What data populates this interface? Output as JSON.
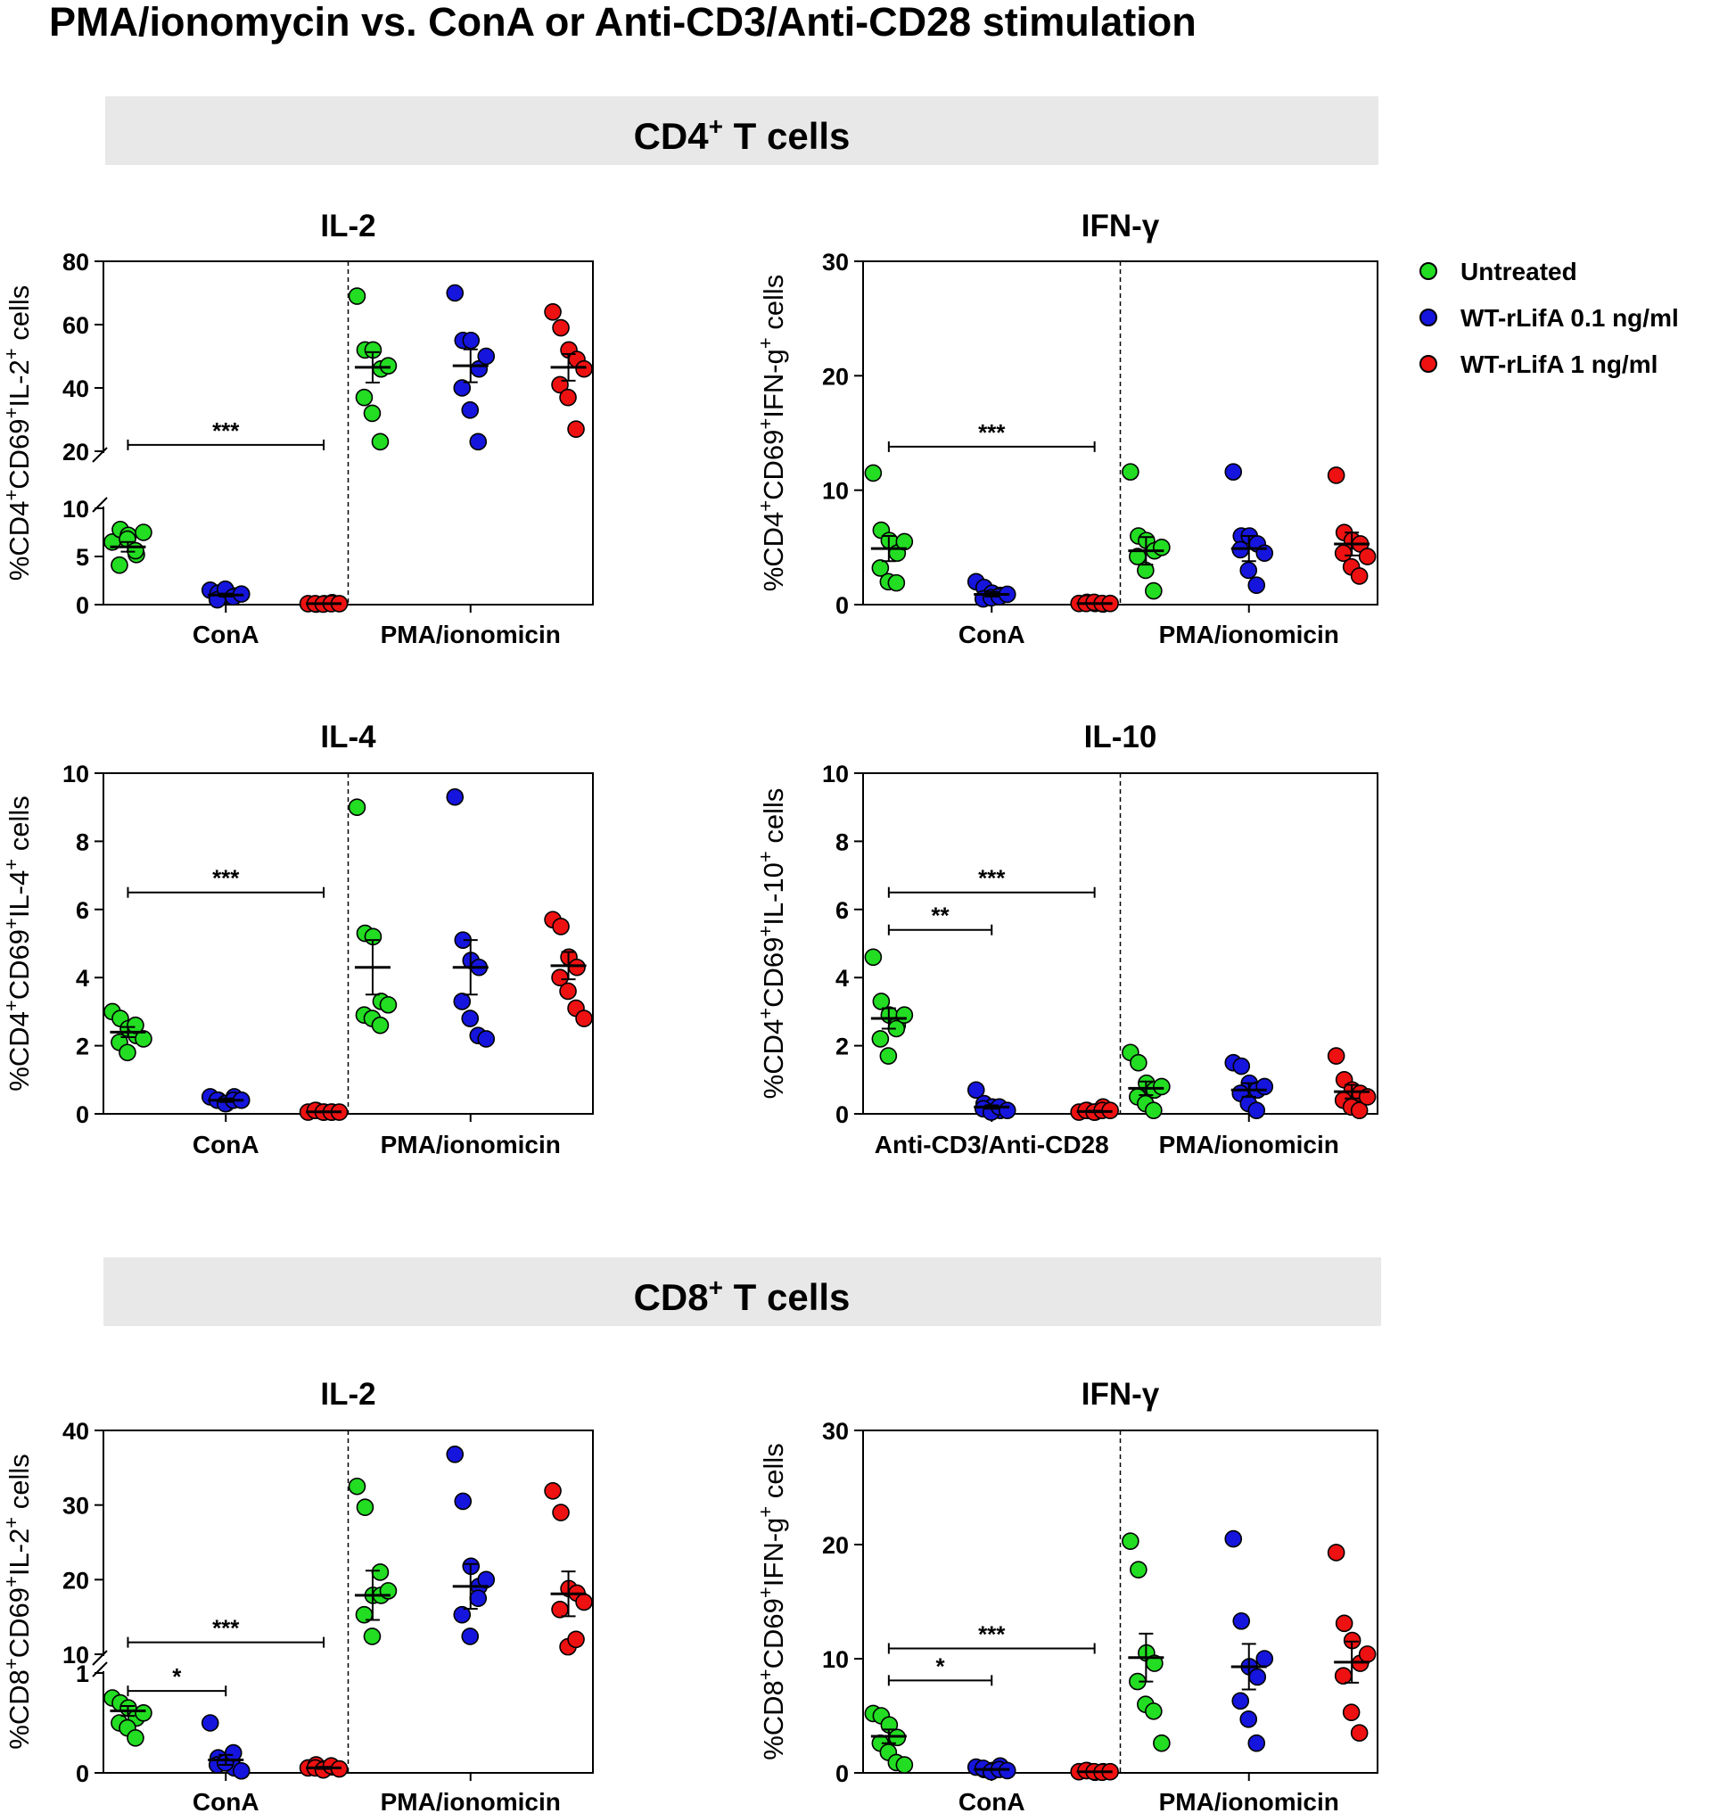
{
  "title": "PMA/ionomycin vs. ConA or Anti-CD3/Anti-CD28 stimulation",
  "sections": [
    {
      "label": "CD4",
      "sup": "+",
      "rest": " T cells"
    },
    {
      "label": "CD8",
      "sup": "+",
      "rest": " T cells"
    }
  ],
  "legend": [
    {
      "label": "Untreated",
      "color": "#22dd22"
    },
    {
      "label": "WT-rLifA 0.1 ng/ml",
      "color": "#1515dd"
    },
    {
      "label": "WT-rLifA 1 ng/ml",
      "color": "#ee1111"
    }
  ],
  "chart_data": [
    {
      "type": "scatter",
      "title": "IL-2",
      "ylabel": [
        [
          "%CD4",
          ""
        ],
        [
          "+",
          "sup"
        ],
        [
          "CD69",
          ""
        ],
        [
          "+",
          "sup"
        ],
        [
          "IL-2",
          ""
        ],
        [
          "+",
          "sup"
        ],
        [
          " cells",
          ""
        ]
      ],
      "categories": [
        "ConA",
        "PMA/ionomicin"
      ],
      "ylim": [
        0,
        80
      ],
      "axis_break": {
        "lower": [
          0,
          10
        ],
        "upper": [
          20,
          80
        ]
      },
      "yticks": [
        "0",
        "5",
        "10",
        "20",
        "40",
        "60",
        "80"
      ],
      "series": [
        {
          "name": "Untreated",
          "values": [
            [
              6.5,
              7.8,
              7.2,
              5.2,
              4.1,
              6.8,
              5.6,
              7.5
            ],
            [
              69,
              52,
              52,
              46,
              37,
              32,
              23,
              47
            ]
          ],
          "mean": [
            6.0,
            46.5
          ],
          "sem": [
            0.5,
            4.8
          ]
        },
        {
          "name": "WT-rLifA 0.1 ng/ml",
          "values": [
            [
              1.5,
              1.2,
              1.0,
              0.9,
              0.5,
              1.6,
              0.8,
              1.1
            ],
            [
              70,
              55,
              55,
              46,
              40,
              33,
              23,
              50
            ]
          ],
          "mean": [
            1.0,
            47.0
          ],
          "sem": [
            0.15,
            5.2
          ]
        },
        {
          "name": "WT-rLifA 1 ng/ml",
          "values": [
            [
              0.1,
              0.05,
              0.1,
              0.2,
              0.1,
              0.05,
              0.1,
              0.1
            ],
            [
              64,
              59,
              52,
              49,
              41,
              37,
              27,
              46
            ]
          ],
          "mean": [
            0.1,
            46.5
          ],
          "sem": [
            0.02,
            4.2
          ]
        }
      ],
      "significance": [
        {
          "from": 0,
          "to": 2,
          "label": "***",
          "y": 22
        }
      ]
    },
    {
      "type": "scatter",
      "title": "IFN-γ",
      "ylabel": [
        [
          "%CD4",
          ""
        ],
        [
          "+",
          "sup"
        ],
        [
          "CD69",
          ""
        ],
        [
          "+",
          "sup"
        ],
        [
          "IFN-g",
          ""
        ],
        [
          "+",
          "sup"
        ],
        [
          " cells",
          ""
        ]
      ],
      "categories": [
        "ConA",
        "PMA/ionomicin"
      ],
      "ylim": [
        0,
        30
      ],
      "yticks": [
        "0",
        "10",
        "20",
        "30"
      ],
      "series": [
        {
          "name": "Untreated",
          "values": [
            [
              11.5,
              6.5,
              5.6,
              4.5,
              3.2,
              2.0,
              1.9,
              5.5
            ],
            [
              11.6,
              6.0,
              5.6,
              4.7,
              4.2,
              3.0,
              1.2,
              5.0
            ]
          ],
          "mean": [
            4.9,
            4.7
          ],
          "sem": [
            1.1,
            1.2
          ]
        },
        {
          "name": "WT-rLifA 0.1 ng/ml",
          "values": [
            [
              2.0,
              1.5,
              1.0,
              0.8,
              0.5,
              0.6,
              0.7,
              0.9
            ],
            [
              11.6,
              6.0,
              6.0,
              5.3,
              4.8,
              3.0,
              1.7,
              4.5
            ]
          ],
          "mean": [
            0.9,
            4.9
          ],
          "sem": [
            0.2,
            1.1
          ]
        },
        {
          "name": "WT-rLifA 1 ng/ml",
          "values": [
            [
              0.1,
              0.2,
              0.1,
              0.05,
              0.1,
              0.2,
              0.1,
              0.1
            ],
            [
              11.3,
              6.3,
              5.6,
              5.3,
              4.5,
              3.3,
              2.5,
              4.2
            ]
          ],
          "mean": [
            0.1,
            5.3
          ],
          "sem": [
            0.02,
            1.0
          ]
        }
      ],
      "significance": [
        {
          "from": 0,
          "to": 2,
          "label": "***",
          "y": 13.8
        }
      ]
    },
    {
      "type": "scatter",
      "title": "IL-4",
      "ylabel": [
        [
          "%CD4",
          ""
        ],
        [
          "+",
          "sup"
        ],
        [
          "CD69",
          ""
        ],
        [
          "+",
          "sup"
        ],
        [
          "IL-4",
          ""
        ],
        [
          "+",
          "sup"
        ],
        [
          " cells",
          ""
        ]
      ],
      "categories": [
        "ConA",
        "PMA/ionomicin"
      ],
      "ylim": [
        0,
        10
      ],
      "yticks": [
        "0",
        "2",
        "4",
        "6",
        "8",
        "10"
      ],
      "series": [
        {
          "name": "Untreated",
          "values": [
            [
              3.0,
              2.8,
              2.5,
              2.3,
              2.1,
              1.8,
              2.6,
              2.2
            ],
            [
              9.0,
              5.3,
              5.2,
              3.3,
              2.9,
              2.8,
              2.6,
              3.2
            ]
          ],
          "mean": [
            2.4,
            4.3
          ],
          "sem": [
            0.15,
            0.8
          ]
        },
        {
          "name": "WT-rLifA 0.1 ng/ml",
          "values": [
            [
              0.5,
              0.4,
              0.3,
              0.5,
              0.4,
              0.3,
              0.4,
              0.4
            ],
            [
              9.3,
              5.1,
              4.5,
              4.3,
              3.3,
              2.8,
              2.3,
              2.2
            ]
          ],
          "mean": [
            0.4,
            4.3
          ],
          "sem": [
            0.05,
            0.8
          ]
        },
        {
          "name": "WT-rLifA 1 ng/ml",
          "values": [
            [
              0.05,
              0.1,
              0.05,
              0.05,
              0.1,
              0.05,
              0.05,
              0.05
            ],
            [
              5.7,
              5.5,
              4.6,
              4.3,
              4.0,
              3.6,
              3.1,
              2.8
            ]
          ],
          "mean": [
            0.06,
            4.35
          ],
          "sem": [
            0.01,
            0.4
          ]
        }
      ],
      "significance": [
        {
          "from": 0,
          "to": 2,
          "label": "***",
          "y": 6.5
        }
      ]
    },
    {
      "type": "scatter",
      "title": "IL-10",
      "ylabel": [
        [
          "%CD4",
          ""
        ],
        [
          "+",
          "sup"
        ],
        [
          "CD69",
          ""
        ],
        [
          "+",
          "sup"
        ],
        [
          "IL-10",
          ""
        ],
        [
          "+",
          "sup"
        ],
        [
          " cells",
          ""
        ]
      ],
      "categories": [
        "Anti-CD3/Anti-CD28",
        "PMA/ionomicin"
      ],
      "ylim": [
        0,
        10
      ],
      "yticks": [
        "0",
        "2",
        "4",
        "6",
        "8",
        "10"
      ],
      "series": [
        {
          "name": "Untreated",
          "values": [
            [
              4.6,
              3.3,
              2.9,
              2.6,
              2.2,
              1.7,
              2.5,
              2.9
            ],
            [
              1.8,
              1.5,
              0.9,
              0.7,
              0.5,
              0.3,
              0.1,
              0.8
            ]
          ],
          "mean": [
            2.8,
            0.75
          ],
          "sem": [
            0.3,
            0.2
          ]
        },
        {
          "name": "WT-rLifA 0.1 ng/ml",
          "values": [
            [
              0.7,
              0.3,
              0.2,
              0.1,
              0.15,
              0.05,
              0.2,
              0.1
            ],
            [
              1.5,
              1.4,
              0.9,
              0.7,
              0.6,
              0.3,
              0.1,
              0.8
            ]
          ],
          "mean": [
            0.2,
            0.7
          ],
          "sem": [
            0.05,
            0.2
          ]
        },
        {
          "name": "WT-rLifA 1 ng/ml",
          "values": [
            [
              0.05,
              0.1,
              0.05,
              0.2,
              0.1,
              0.05,
              0.1,
              0.1
            ],
            [
              1.7,
              1.0,
              0.7,
              0.6,
              0.4,
              0.2,
              0.1,
              0.5
            ]
          ],
          "mean": [
            0.07,
            0.65
          ],
          "sem": [
            0.02,
            0.2
          ]
        }
      ],
      "significance": [
        {
          "from": 0,
          "to": 1,
          "label": "**",
          "y": 5.4
        },
        {
          "from": 0,
          "to": 2,
          "label": "***",
          "y": 6.5
        }
      ]
    },
    {
      "type": "scatter",
      "title": "IL-2",
      "ylabel": [
        [
          "%CD8",
          ""
        ],
        [
          "+",
          "sup"
        ],
        [
          "CD69",
          ""
        ],
        [
          "+",
          "sup"
        ],
        [
          "IL-2",
          ""
        ],
        [
          "+",
          "sup"
        ],
        [
          " cells",
          ""
        ]
      ],
      "categories": [
        "ConA",
        "PMA/ionomicin"
      ],
      "ylim": [
        0,
        40
      ],
      "axis_break": {
        "lower": [
          0,
          1
        ],
        "upper": [
          10,
          40
        ]
      },
      "yticks": [
        "0",
        "1",
        "10",
        "20",
        "30",
        "40"
      ],
      "series": [
        {
          "name": "Untreated",
          "values": [
            [
              0.75,
              0.7,
              0.65,
              0.55,
              0.5,
              0.45,
              0.35,
              0.6
            ],
            [
              32.5,
              29.7,
              17.9,
              17.9,
              15.3,
              12.4,
              21.0,
              18.5
            ]
          ],
          "mean": [
            0.62,
            17.9
          ],
          "sem": [
            0.05,
            3.3
          ]
        },
        {
          "name": "WT-rLifA 0.1 ng/ml",
          "values": [
            [
              0.5,
              0.15,
              0.1,
              0.05,
              0.08,
              0.1,
              0.2,
              0.02
            ],
            [
              36.8,
              30.5,
              21.8,
              19.1,
              15.3,
              12.4,
              17.5,
              20.0
            ]
          ],
          "mean": [
            0.13,
            19.1
          ],
          "sem": [
            0.05,
            3.0
          ]
        },
        {
          "name": "WT-rLifA 1 ng/ml",
          "values": [
            [
              0.05,
              0.08,
              0.04,
              0.06,
              0.05,
              0.03,
              0.07,
              0.04
            ],
            [
              31.9,
              29.0,
              18.8,
              18.2,
              16.0,
              11.0,
              12.0,
              17.0
            ]
          ],
          "mean": [
            0.05,
            18.1
          ],
          "sem": [
            0.01,
            3.0
          ]
        }
      ],
      "significance": [
        {
          "from": 0,
          "to": 1,
          "label": "*",
          "y": 0.82
        },
        {
          "from": 0,
          "to": 2,
          "label": "***",
          "y": 11.6
        }
      ]
    },
    {
      "type": "scatter",
      "title": "IFN-γ",
      "ylabel": [
        [
          "%CD8",
          ""
        ],
        [
          "+",
          "sup"
        ],
        [
          "CD69",
          ""
        ],
        [
          "+",
          "sup"
        ],
        [
          "IFN-g",
          ""
        ],
        [
          "+",
          "sup"
        ],
        [
          " cells",
          ""
        ]
      ],
      "categories": [
        "ConA",
        "PMA/ionomicin"
      ],
      "ylim": [
        0,
        30
      ],
      "yticks": [
        "0",
        "10",
        "20",
        "30"
      ],
      "series": [
        {
          "name": "Untreated",
          "values": [
            [
              5.2,
              5.0,
              4.2,
              3.1,
              2.6,
              1.8,
              0.9,
              0.7
            ],
            [
              20.3,
              17.8,
              10.5,
              9.6,
              8.0,
              6.0,
              5.4,
              2.6
            ]
          ],
          "mean": [
            3.2,
            10.1
          ],
          "sem": [
            0.6,
            2.1
          ]
        },
        {
          "name": "WT-rLifA 0.1 ng/ml",
          "values": [
            [
              0.5,
              0.3,
              0.2,
              0.6,
              0.4,
              0.1,
              0.3,
              0.2
            ],
            [
              20.5,
              13.3,
              9.3,
              8.4,
              6.3,
              4.7,
              2.6,
              10.0
            ]
          ],
          "mean": [
            0.3,
            9.3
          ],
          "sem": [
            0.05,
            2.0
          ]
        },
        {
          "name": "WT-rLifA 1 ng/ml",
          "values": [
            [
              0.1,
              0.2,
              0.05,
              0.1,
              0.2,
              0.1,
              0.05,
              0.1
            ],
            [
              19.3,
              13.1,
              11.6,
              9.6,
              8.5,
              5.3,
              3.5,
              10.4
            ]
          ],
          "mean": [
            0.1,
            9.7
          ],
          "sem": [
            0.02,
            1.8
          ]
        }
      ],
      "significance": [
        {
          "from": 0,
          "to": 1,
          "label": "*",
          "y": 8.1
        },
        {
          "from": 0,
          "to": 2,
          "label": "***",
          "y": 10.9
        }
      ]
    }
  ]
}
